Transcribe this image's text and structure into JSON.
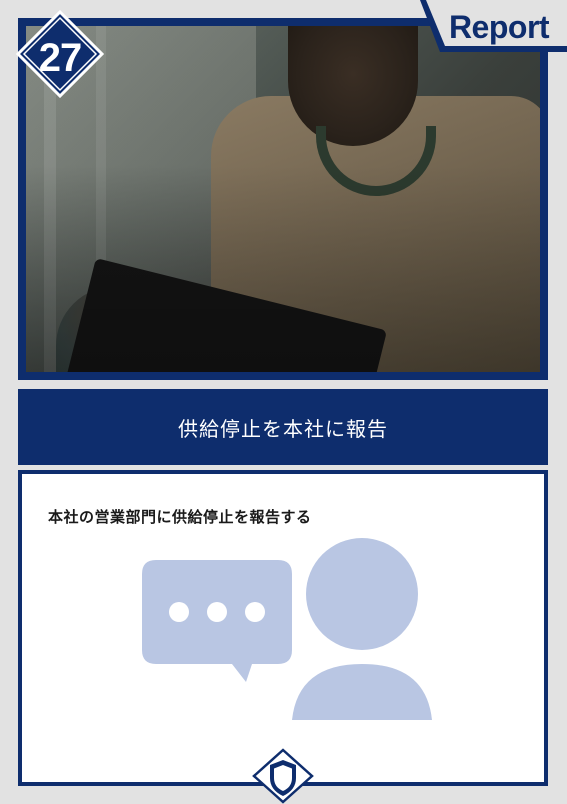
{
  "badge": {
    "number": "27"
  },
  "tab": {
    "label": "Report"
  },
  "title_bar": {
    "text": "供給停止を本社に報告"
  },
  "content": {
    "heading": "本社の営業部門に供給停止を報告する"
  },
  "icons": {
    "chat": "speech-bubble-icon",
    "person": "person-icon",
    "shield": "shield-icon"
  },
  "colors": {
    "navy": "#0e2d6d",
    "icon_blue": "#b9c6e3",
    "background": "#e2e2e2"
  }
}
